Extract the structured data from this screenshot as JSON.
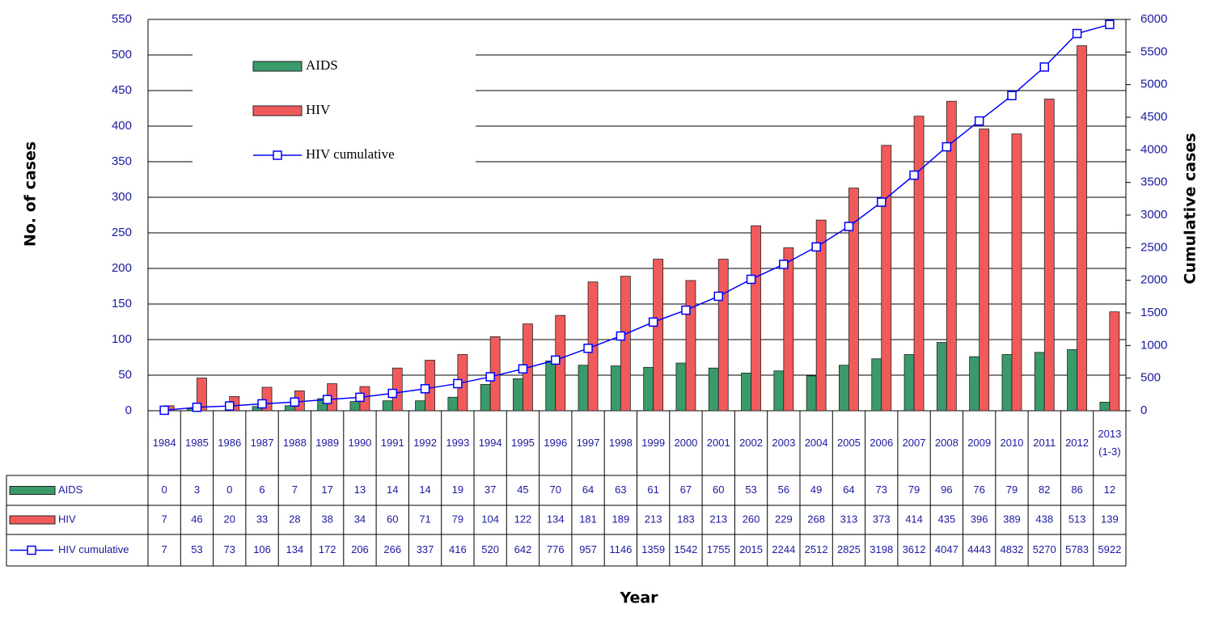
{
  "chart_data": {
    "type": "bar",
    "ylabel": "No. of cases",
    "y2label": "Cumulative cases",
    "xlabel": "Year",
    "categories": [
      "1984",
      "1985",
      "1986",
      "1987",
      "1988",
      "1989",
      "1990",
      "1991",
      "1992",
      "1993",
      "1994",
      "1995",
      "1996",
      "1997",
      "1998",
      "1999",
      "2000",
      "2001",
      "2002",
      "2003",
      "2004",
      "2005",
      "2006",
      "2007",
      "2008",
      "2009",
      "2010",
      "2011",
      "2012",
      "2013 (1-3)"
    ],
    "series": [
      {
        "name": "AIDS",
        "type": "bar",
        "color": "#3a9a6a",
        "values": [
          0,
          3,
          0,
          6,
          7,
          17,
          13,
          14,
          14,
          19,
          37,
          45,
          70,
          64,
          63,
          61,
          67,
          60,
          53,
          56,
          49,
          64,
          73,
          79,
          96,
          76,
          79,
          82,
          86,
          12
        ]
      },
      {
        "name": "HIV",
        "type": "bar",
        "color": "#f05a5a",
        "values": [
          7,
          46,
          20,
          33,
          28,
          38,
          34,
          60,
          71,
          79,
          104,
          122,
          134,
          181,
          189,
          213,
          183,
          213,
          260,
          229,
          268,
          313,
          373,
          414,
          435,
          396,
          389,
          438,
          513,
          139
        ]
      },
      {
        "name": "HIV cumulative",
        "type": "line",
        "axis": "y2",
        "color": "#0000ff",
        "values": [
          7,
          53,
          73,
          106,
          134,
          172,
          206,
          266,
          337,
          416,
          520,
          642,
          776,
          957,
          1146,
          1359,
          1542,
          1755,
          2015,
          2244,
          2512,
          2825,
          3198,
          3612,
          4047,
          4443,
          4832,
          5270,
          5783,
          5922
        ]
      }
    ],
    "ylim": [
      0,
      550
    ],
    "yticks": [
      0,
      50,
      100,
      150,
      200,
      250,
      300,
      350,
      400,
      450,
      500,
      550
    ],
    "y2lim": [
      0,
      6000
    ],
    "y2ticks": [
      0,
      500,
      1000,
      1500,
      2000,
      2500,
      3000,
      3500,
      4000,
      4500,
      5000,
      5500,
      6000
    ],
    "grid": true,
    "legend": "upper left",
    "data_table": true
  }
}
